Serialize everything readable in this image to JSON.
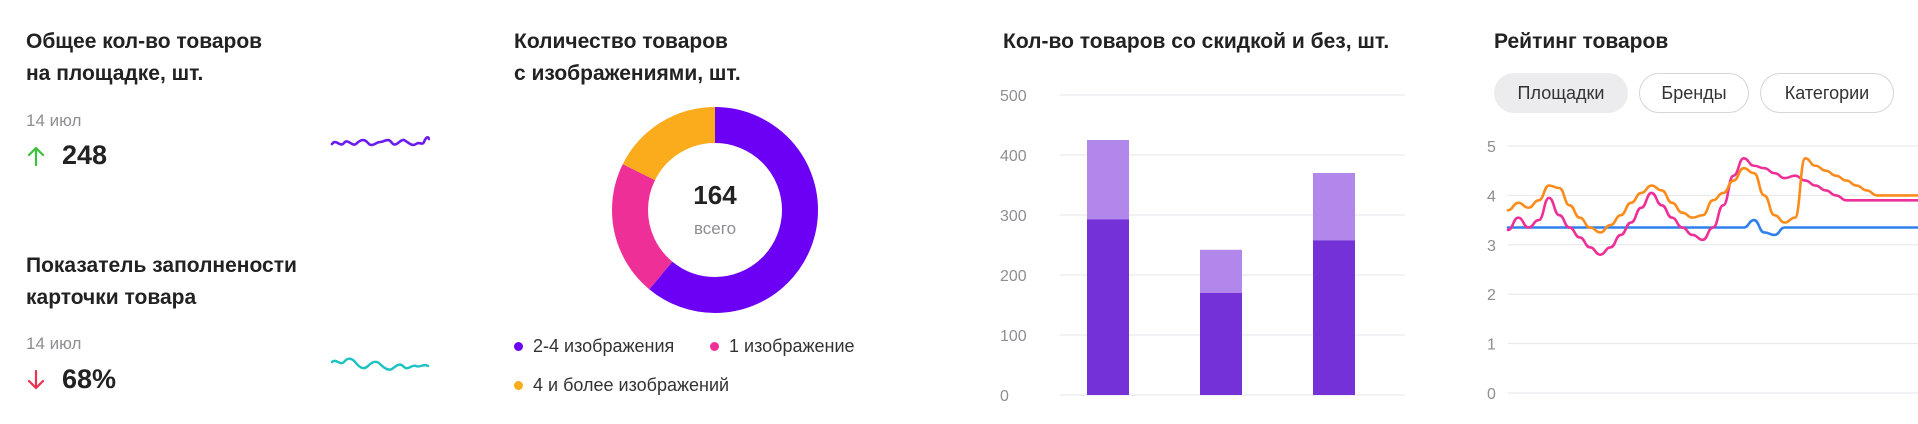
{
  "widget1": {
    "title_line1": "Общее кол-во товаров",
    "title_line2": "на площадке, шт.",
    "date": "14 июл",
    "value": "248",
    "trend": "up",
    "spark_color": "#6a1bf0"
  },
  "widget2": {
    "title_line1": "Показатель заполнености",
    "title_line2": "карточки товара",
    "date": "14 июл",
    "value": "68%",
    "trend": "down",
    "spark_color": "#1ec2c2"
  },
  "colors": {
    "up": "#3cc13b",
    "down": "#e8334f"
  },
  "donut": {
    "title_line1": "Количество товаров",
    "title_line2": "с изображениями, шт.",
    "total": "164",
    "total_label": "всего",
    "legend_a": "2-4 изображения",
    "legend_b": "1 изображение",
    "legend_c": "4 и более изображений"
  },
  "bars": {
    "title": "Кол-во товаров со скидкой и без, шт."
  },
  "rating": {
    "title": "Рейтинг товаров",
    "tabs": [
      "Площадки",
      "Бренды",
      "Категории"
    ],
    "active_tab": "Площадки"
  },
  "chart_data": [
    {
      "type": "pie",
      "title": "Количество товаров с изображениями, шт.",
      "center_value": 164,
      "slices": [
        {
          "label": "2-4 изображения",
          "value": 100,
          "color": "#6b00f5"
        },
        {
          "label": "1 изображение",
          "value": 35,
          "color": "#ee2f97"
        },
        {
          "label": "4 и более изображений",
          "value": 29,
          "color": "#fbac1c"
        }
      ]
    },
    {
      "type": "bar",
      "title": "Кол-во товаров со скидкой и без, шт.",
      "stacked": true,
      "categories": [
        "",
        "",
        ""
      ],
      "series": [
        {
          "values": [
            293,
            170,
            258
          ],
          "color": "#7431d8"
        },
        {
          "values": [
            132,
            72,
            112
          ],
          "color": "#b287ec"
        }
      ],
      "ylim": [
        0,
        500
      ],
      "yticks": [
        0,
        100,
        200,
        300,
        400,
        500
      ],
      "grid": true
    },
    {
      "type": "line",
      "title": "Рейтинг товаров",
      "ylim": [
        0,
        5
      ],
      "yticks": [
        0,
        1,
        2,
        3,
        4,
        5
      ],
      "grid": true,
      "x": [
        0,
        1,
        2,
        3,
        4,
        5,
        6,
        7,
        8,
        9,
        10,
        11,
        12,
        13,
        14,
        15,
        16,
        17,
        18,
        19,
        20,
        21,
        22,
        23,
        24,
        25,
        26,
        27,
        28,
        29,
        30,
        31,
        32,
        33,
        34,
        35,
        36,
        37,
        38,
        39,
        40
      ],
      "series": [
        {
          "color": "#2f80ed",
          "values": [
            3.35,
            3.35,
            3.35,
            3.35,
            3.35,
            3.35,
            3.35,
            3.35,
            3.35,
            3.35,
            3.35,
            3.35,
            3.35,
            3.35,
            3.35,
            3.35,
            3.35,
            3.35,
            3.35,
            3.35,
            3.35,
            3.35,
            3.35,
            3.35,
            3.5,
            3.25,
            3.2,
            3.35,
            3.35,
            3.35,
            3.35,
            3.35,
            3.35,
            3.35,
            3.35,
            3.35,
            3.35,
            3.35,
            3.35,
            3.35,
            3.35
          ]
        },
        {
          "color": "#ee2f97",
          "values": [
            3.3,
            3.55,
            3.35,
            3.5,
            3.95,
            3.6,
            3.35,
            3.15,
            2.95,
            2.8,
            2.95,
            3.2,
            3.45,
            3.75,
            4.05,
            3.8,
            3.55,
            3.35,
            3.2,
            3.1,
            3.35,
            3.8,
            4.4,
            4.75,
            4.6,
            4.55,
            4.45,
            4.35,
            4.4,
            4.3,
            4.2,
            4.1,
            4.0,
            3.9,
            3.9,
            3.9,
            3.9,
            3.9,
            3.9,
            3.9,
            3.9
          ]
        },
        {
          "color": "#fb8c1c",
          "values": [
            3.7,
            3.85,
            3.75,
            3.9,
            4.2,
            4.15,
            3.8,
            3.55,
            3.35,
            3.25,
            3.4,
            3.6,
            3.85,
            4.05,
            4.2,
            4.1,
            3.85,
            3.65,
            3.55,
            3.6,
            3.9,
            4.05,
            4.3,
            4.55,
            4.45,
            4.0,
            3.6,
            3.45,
            3.55,
            4.75,
            4.6,
            4.5,
            4.4,
            4.3,
            4.2,
            4.1,
            4.0,
            4.0,
            4.0,
            4.0,
            4.0
          ]
        }
      ]
    }
  ]
}
